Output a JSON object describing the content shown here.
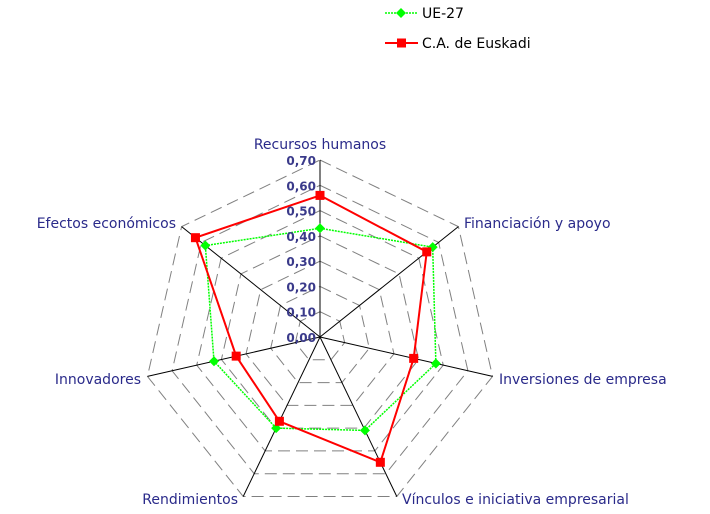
{
  "chart_data": {
    "type": "radar",
    "title": "",
    "categories": [
      "Recursos humanos",
      "Financiación y apoyo",
      "Inversiones de empresa",
      "Vínculos e iniciativa empresarial",
      "Rendimientos",
      "Innovadores",
      "Efectos económicos"
    ],
    "series": [
      {
        "name": "UE-27",
        "color": "#00ff00",
        "marker": "diamond",
        "values": [
          0.43,
          0.57,
          0.47,
          0.41,
          0.4,
          0.43,
          0.58
        ]
      },
      {
        "name": "C.A. de Euskadi",
        "color": "#ff0000",
        "marker": "square",
        "values": [
          0.56,
          0.54,
          0.38,
          0.55,
          0.37,
          0.34,
          0.63
        ]
      }
    ],
    "rlim": [
      0,
      0.7
    ],
    "ticks": [
      "0,00",
      "0,10",
      "0,20",
      "0,30",
      "0,40",
      "0,50",
      "0,60",
      "0,70"
    ],
    "grid": true,
    "legend_position": "top"
  }
}
